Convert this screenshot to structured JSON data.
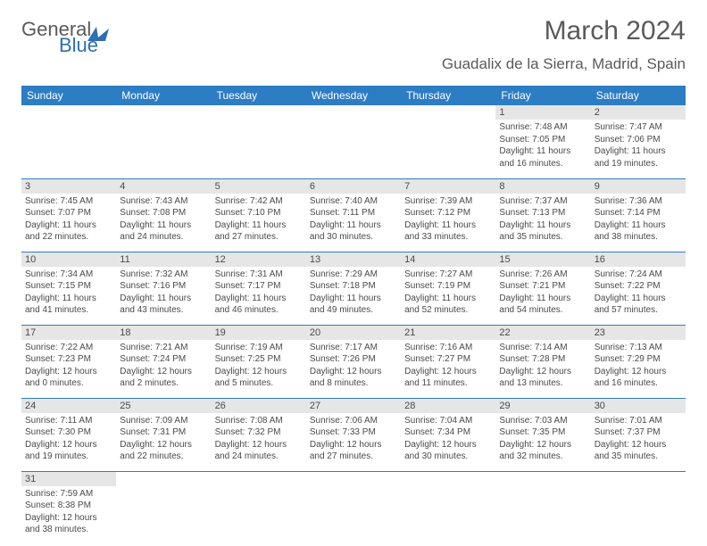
{
  "logo": {
    "part1": "General",
    "part2": "Blue"
  },
  "title": "March 2024",
  "location": "Guadalix de la Sierra, Madrid, Spain",
  "colors": {
    "header_bg": "#2d7dc4",
    "header_text": "#ffffff",
    "daynum_bg": "#e6e6e6",
    "text": "#4a4a4a",
    "logo_gray": "#5a5a5a",
    "logo_blue": "#2d6fb5",
    "rule": "#2d7dc4"
  },
  "weekdays": [
    "Sunday",
    "Monday",
    "Tuesday",
    "Wednesday",
    "Thursday",
    "Friday",
    "Saturday"
  ],
  "weeks": [
    [
      {
        "n": "",
        "sr": "",
        "ss": "",
        "dl": ""
      },
      {
        "n": "",
        "sr": "",
        "ss": "",
        "dl": ""
      },
      {
        "n": "",
        "sr": "",
        "ss": "",
        "dl": ""
      },
      {
        "n": "",
        "sr": "",
        "ss": "",
        "dl": ""
      },
      {
        "n": "",
        "sr": "",
        "ss": "",
        "dl": ""
      },
      {
        "n": "1",
        "sr": "Sunrise: 7:48 AM",
        "ss": "Sunset: 7:05 PM",
        "dl": "Daylight: 11 hours and 16 minutes."
      },
      {
        "n": "2",
        "sr": "Sunrise: 7:47 AM",
        "ss": "Sunset: 7:06 PM",
        "dl": "Daylight: 11 hours and 19 minutes."
      }
    ],
    [
      {
        "n": "3",
        "sr": "Sunrise: 7:45 AM",
        "ss": "Sunset: 7:07 PM",
        "dl": "Daylight: 11 hours and 22 minutes."
      },
      {
        "n": "4",
        "sr": "Sunrise: 7:43 AM",
        "ss": "Sunset: 7:08 PM",
        "dl": "Daylight: 11 hours and 24 minutes."
      },
      {
        "n": "5",
        "sr": "Sunrise: 7:42 AM",
        "ss": "Sunset: 7:10 PM",
        "dl": "Daylight: 11 hours and 27 minutes."
      },
      {
        "n": "6",
        "sr": "Sunrise: 7:40 AM",
        "ss": "Sunset: 7:11 PM",
        "dl": "Daylight: 11 hours and 30 minutes."
      },
      {
        "n": "7",
        "sr": "Sunrise: 7:39 AM",
        "ss": "Sunset: 7:12 PM",
        "dl": "Daylight: 11 hours and 33 minutes."
      },
      {
        "n": "8",
        "sr": "Sunrise: 7:37 AM",
        "ss": "Sunset: 7:13 PM",
        "dl": "Daylight: 11 hours and 35 minutes."
      },
      {
        "n": "9",
        "sr": "Sunrise: 7:36 AM",
        "ss": "Sunset: 7:14 PM",
        "dl": "Daylight: 11 hours and 38 minutes."
      }
    ],
    [
      {
        "n": "10",
        "sr": "Sunrise: 7:34 AM",
        "ss": "Sunset: 7:15 PM",
        "dl": "Daylight: 11 hours and 41 minutes."
      },
      {
        "n": "11",
        "sr": "Sunrise: 7:32 AM",
        "ss": "Sunset: 7:16 PM",
        "dl": "Daylight: 11 hours and 43 minutes."
      },
      {
        "n": "12",
        "sr": "Sunrise: 7:31 AM",
        "ss": "Sunset: 7:17 PM",
        "dl": "Daylight: 11 hours and 46 minutes."
      },
      {
        "n": "13",
        "sr": "Sunrise: 7:29 AM",
        "ss": "Sunset: 7:18 PM",
        "dl": "Daylight: 11 hours and 49 minutes."
      },
      {
        "n": "14",
        "sr": "Sunrise: 7:27 AM",
        "ss": "Sunset: 7:19 PM",
        "dl": "Daylight: 11 hours and 52 minutes."
      },
      {
        "n": "15",
        "sr": "Sunrise: 7:26 AM",
        "ss": "Sunset: 7:21 PM",
        "dl": "Daylight: 11 hours and 54 minutes."
      },
      {
        "n": "16",
        "sr": "Sunrise: 7:24 AM",
        "ss": "Sunset: 7:22 PM",
        "dl": "Daylight: 11 hours and 57 minutes."
      }
    ],
    [
      {
        "n": "17",
        "sr": "Sunrise: 7:22 AM",
        "ss": "Sunset: 7:23 PM",
        "dl": "Daylight: 12 hours and 0 minutes."
      },
      {
        "n": "18",
        "sr": "Sunrise: 7:21 AM",
        "ss": "Sunset: 7:24 PM",
        "dl": "Daylight: 12 hours and 2 minutes."
      },
      {
        "n": "19",
        "sr": "Sunrise: 7:19 AM",
        "ss": "Sunset: 7:25 PM",
        "dl": "Daylight: 12 hours and 5 minutes."
      },
      {
        "n": "20",
        "sr": "Sunrise: 7:17 AM",
        "ss": "Sunset: 7:26 PM",
        "dl": "Daylight: 12 hours and 8 minutes."
      },
      {
        "n": "21",
        "sr": "Sunrise: 7:16 AM",
        "ss": "Sunset: 7:27 PM",
        "dl": "Daylight: 12 hours and 11 minutes."
      },
      {
        "n": "22",
        "sr": "Sunrise: 7:14 AM",
        "ss": "Sunset: 7:28 PM",
        "dl": "Daylight: 12 hours and 13 minutes."
      },
      {
        "n": "23",
        "sr": "Sunrise: 7:13 AM",
        "ss": "Sunset: 7:29 PM",
        "dl": "Daylight: 12 hours and 16 minutes."
      }
    ],
    [
      {
        "n": "24",
        "sr": "Sunrise: 7:11 AM",
        "ss": "Sunset: 7:30 PM",
        "dl": "Daylight: 12 hours and 19 minutes."
      },
      {
        "n": "25",
        "sr": "Sunrise: 7:09 AM",
        "ss": "Sunset: 7:31 PM",
        "dl": "Daylight: 12 hours and 22 minutes."
      },
      {
        "n": "26",
        "sr": "Sunrise: 7:08 AM",
        "ss": "Sunset: 7:32 PM",
        "dl": "Daylight: 12 hours and 24 minutes."
      },
      {
        "n": "27",
        "sr": "Sunrise: 7:06 AM",
        "ss": "Sunset: 7:33 PM",
        "dl": "Daylight: 12 hours and 27 minutes."
      },
      {
        "n": "28",
        "sr": "Sunrise: 7:04 AM",
        "ss": "Sunset: 7:34 PM",
        "dl": "Daylight: 12 hours and 30 minutes."
      },
      {
        "n": "29",
        "sr": "Sunrise: 7:03 AM",
        "ss": "Sunset: 7:35 PM",
        "dl": "Daylight: 12 hours and 32 minutes."
      },
      {
        "n": "30",
        "sr": "Sunrise: 7:01 AM",
        "ss": "Sunset: 7:37 PM",
        "dl": "Daylight: 12 hours and 35 minutes."
      }
    ],
    [
      {
        "n": "31",
        "sr": "Sunrise: 7:59 AM",
        "ss": "Sunset: 8:38 PM",
        "dl": "Daylight: 12 hours and 38 minutes."
      },
      {
        "n": "",
        "sr": "",
        "ss": "",
        "dl": ""
      },
      {
        "n": "",
        "sr": "",
        "ss": "",
        "dl": ""
      },
      {
        "n": "",
        "sr": "",
        "ss": "",
        "dl": ""
      },
      {
        "n": "",
        "sr": "",
        "ss": "",
        "dl": ""
      },
      {
        "n": "",
        "sr": "",
        "ss": "",
        "dl": ""
      },
      {
        "n": "",
        "sr": "",
        "ss": "",
        "dl": ""
      }
    ]
  ]
}
